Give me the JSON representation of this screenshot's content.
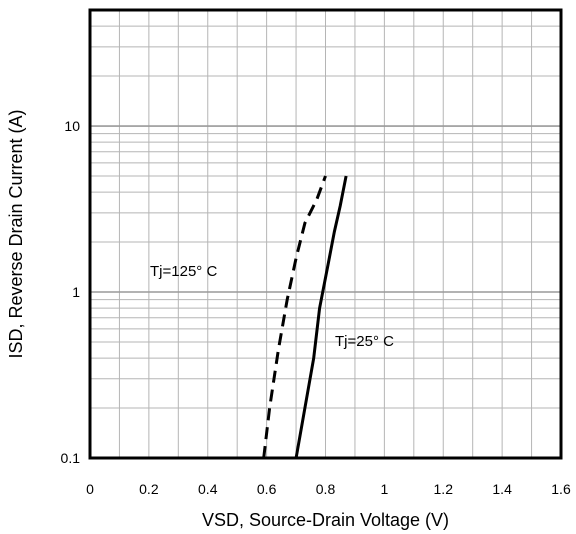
{
  "chart_data": {
    "type": "line",
    "title": "",
    "xlabel": "VSD, Source-Drain Voltage (V)",
    "ylabel": "ISD, Reverse Drain Current (A)",
    "xlim": [
      0,
      1.6
    ],
    "ylim": [
      0.1,
      50
    ],
    "yscale": "log",
    "grid": true,
    "x_ticks": [
      "0",
      "0.2",
      "0.4",
      "0.6",
      "0.8",
      "1",
      "1.2",
      "1.4",
      "1.6"
    ],
    "y_ticks": [
      {
        "value": 0.1,
        "label": "0.1"
      },
      {
        "value": 1,
        "label": "1"
      },
      {
        "value": 10,
        "label": "10"
      }
    ],
    "series": [
      {
        "name": "Tj=25° C",
        "style": "solid",
        "color": "#000000",
        "points": [
          [
            0.7,
            0.1
          ],
          [
            0.73,
            0.2
          ],
          [
            0.76,
            0.4
          ],
          [
            0.78,
            0.8
          ],
          [
            0.81,
            1.5
          ],
          [
            0.83,
            2.3
          ],
          [
            0.85,
            3.3
          ],
          [
            0.87,
            5.0
          ]
        ]
      },
      {
        "name": "Tj=125° C",
        "style": "dashed",
        "color": "#000000",
        "points": [
          [
            0.59,
            0.1
          ],
          [
            0.61,
            0.2
          ],
          [
            0.64,
            0.45
          ],
          [
            0.67,
            0.9
          ],
          [
            0.7,
            1.6
          ],
          [
            0.73,
            2.6
          ],
          [
            0.77,
            3.6
          ],
          [
            0.8,
            5.0
          ]
        ]
      }
    ],
    "annotations": [
      {
        "text": "Tj=125° C",
        "series": "Tj=125° C"
      },
      {
        "text": "Tj=25° C",
        "series": "Tj=25° C"
      }
    ]
  }
}
